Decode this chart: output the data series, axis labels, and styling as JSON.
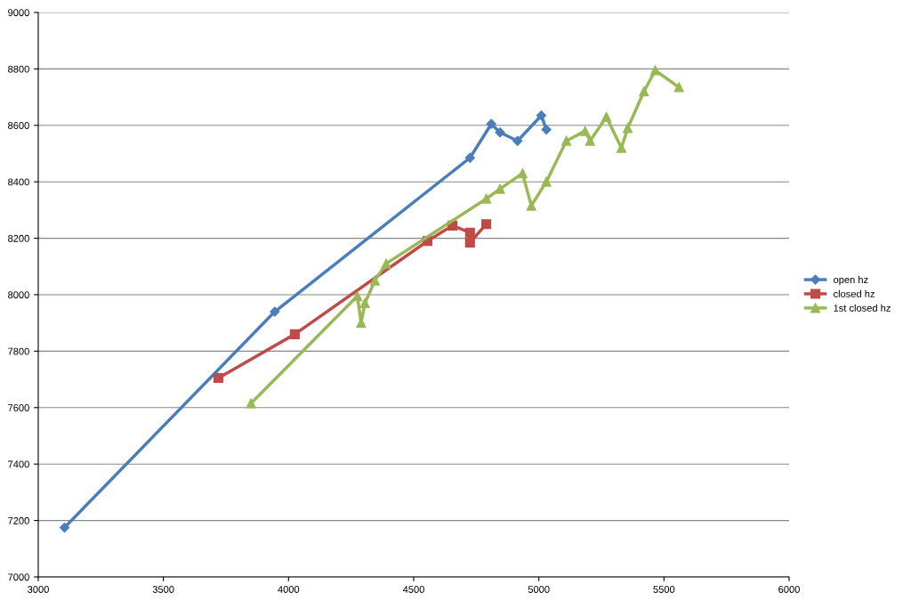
{
  "chart_data": {
    "type": "line",
    "xlim": [
      3000,
      6000
    ],
    "xticks": [
      3000,
      3500,
      4000,
      4500,
      5000,
      5500,
      6000
    ],
    "ylim": [
      7000,
      9000
    ],
    "yticks": [
      7000,
      7200,
      7400,
      7600,
      7800,
      8000,
      8200,
      8400,
      8600,
      8800,
      9000
    ],
    "grid": "y",
    "legend": "right",
    "line_style": "solid",
    "series": [
      {
        "name": "open hz",
        "color": "#4a7ebb",
        "marker": "diamond",
        "x": [
          3105,
          3945,
          4725,
          4810,
          4845,
          4915,
          5010,
          5030
        ],
        "values": [
          7175,
          7940,
          8485,
          8605,
          8575,
          8545,
          8635,
          8585
        ]
      },
      {
        "name": "closed hz",
        "color": "#be4b48",
        "marker": "square",
        "x": [
          3720,
          4025,
          4555,
          4655,
          4725,
          4725,
          4790
        ],
        "values": [
          7705,
          7860,
          8190,
          8245,
          8220,
          8185,
          8250
        ]
      },
      {
        "name": "1st closed hz",
        "color": "#98b954",
        "marker": "triangle",
        "x": [
          3850,
          4275,
          4290,
          4305,
          4345,
          4390,
          4790,
          4845,
          4935,
          4970,
          5030,
          5110,
          5185,
          5205,
          5270,
          5330,
          5355,
          5420,
          5465,
          5560
        ],
        "values": [
          7615,
          7995,
          7900,
          7970,
          8050,
          8110,
          8340,
          8375,
          8430,
          8315,
          8400,
          8545,
          8580,
          8545,
          8630,
          8520,
          8590,
          8720,
          8795,
          8735
        ]
      }
    ]
  }
}
